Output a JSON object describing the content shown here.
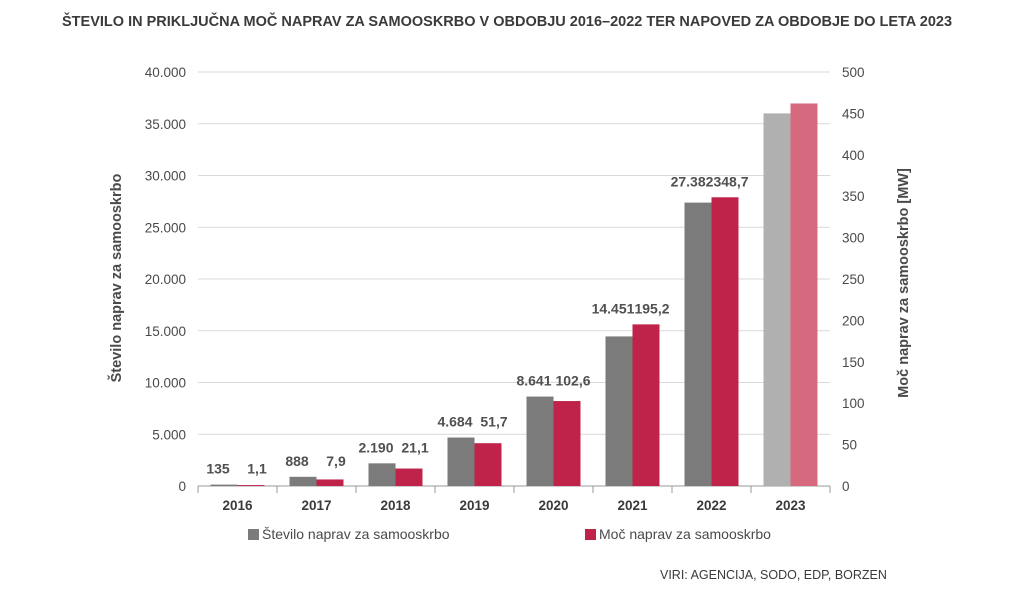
{
  "title": "ŠTEVILO IN PRIKLJUČNA MOČ NAPRAV ZA SAMOOSKRBO V OBDOBJU 2016–2022 TER NAPOVED ZA OBDOBJE DO LETA 2023",
  "source": "VIRI: AGENCIJA, SODO, EDP, BORZEN",
  "colors": {
    "count": "#7b7b7b",
    "power": "#c0234a",
    "count_forecast": "#b0b0b0",
    "power_forecast": "#d7697f",
    "grid": "#d9d9d9",
    "text": "#4a4a4a"
  },
  "chart_data": {
    "type": "bar",
    "categories": [
      "2016",
      "2017",
      "2018",
      "2019",
      "2020",
      "2021",
      "2022",
      "2023"
    ],
    "series": [
      {
        "name": "Število naprav za samooskrbo",
        "axis": "left",
        "values": [
          135,
          888,
          2190,
          4684,
          8641,
          14451,
          27382,
          36000
        ],
        "labels": [
          "135",
          "888",
          "2.190",
          "4.684",
          "8.641",
          "14.451",
          "27.382",
          ""
        ]
      },
      {
        "name": "Moč naprav za samooskrbo",
        "axis": "right",
        "values": [
          1.1,
          7.9,
          21.1,
          51.7,
          102.6,
          195.2,
          348.7,
          462
        ],
        "labels": [
          "1,1",
          "7,9",
          "21,1",
          "51,7",
          "102,6",
          "195,2",
          "348,7",
          ""
        ]
      }
    ],
    "forecast_categories": [
      "2023"
    ],
    "ylabel_left": "Število naprav za samooskrbo",
    "ylabel_right": "Moč naprav za samooskrbo  [MW]",
    "ylim_left": [
      0,
      40000
    ],
    "ylim_right": [
      0,
      500
    ],
    "yticks_left": [
      "0",
      "5.000",
      "10.000",
      "15.000",
      "20.000",
      "25.000",
      "30.000",
      "35.000",
      "40.000"
    ],
    "yticks_right": [
      "0",
      "50",
      "100",
      "150",
      "200",
      "250",
      "300",
      "350",
      "400",
      "450",
      "500"
    ],
    "grid": true,
    "legend": "bottom"
  }
}
